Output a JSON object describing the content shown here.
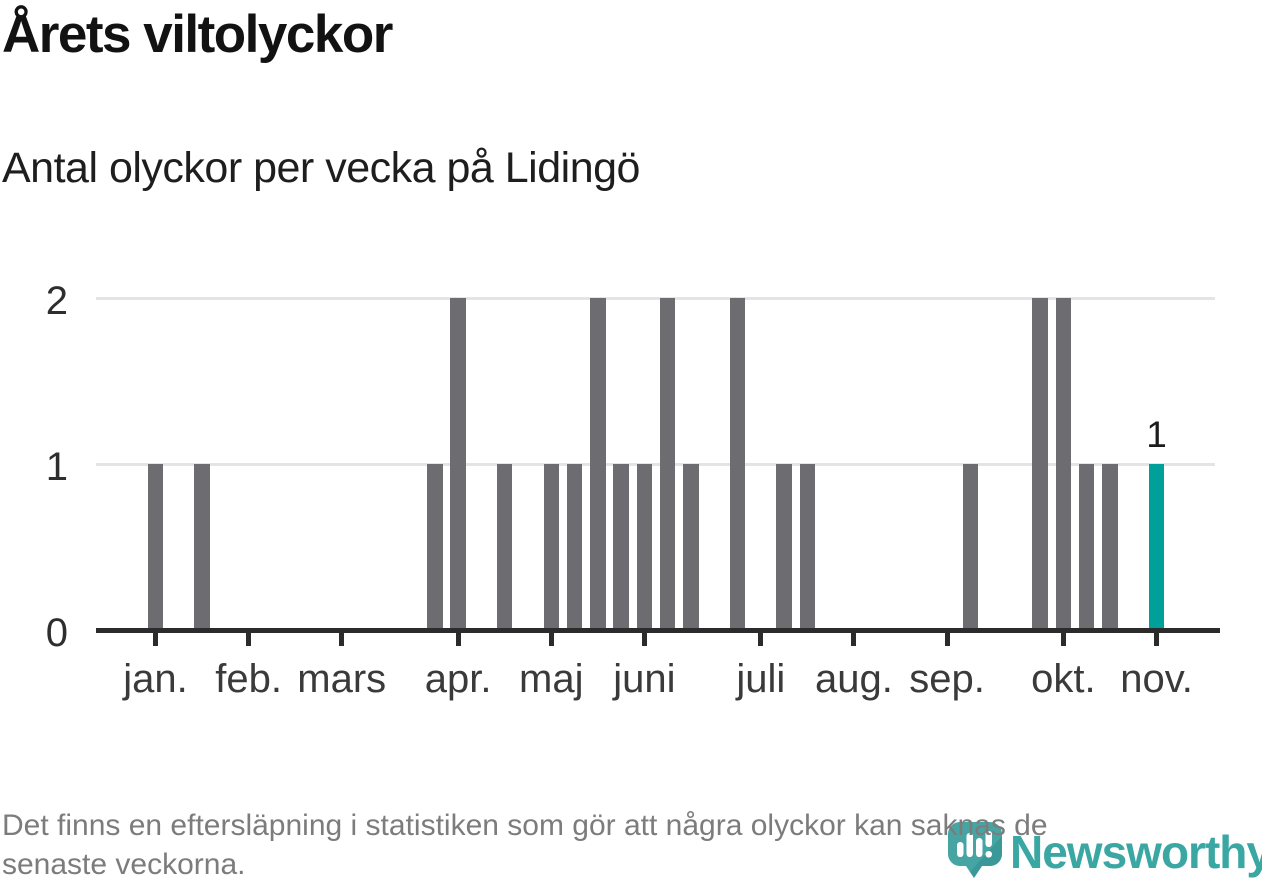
{
  "title": "Årets viltolyckor",
  "subtitle": "Antal olyckor per vecka på Lidingö",
  "footer": {
    "lines": [
      "Det finns en eftersläpning i statistiken som gör att några olyckor kan saknas de",
      "senaste veckorna."
    ]
  },
  "brand": {
    "name": "Newsworthy",
    "icon": "newsworthy-pin-barchart-icon",
    "wordmark_color": "#3aa7a3",
    "pin_color": "#46a5a3"
  },
  "colors": {
    "bar": "#6c6c71",
    "highlight": "#00a09a",
    "axis": "#2b2b2b",
    "grid": "#e4e4e4",
    "annotation_text": "#1c1c1c"
  },
  "chart_data": {
    "type": "bar",
    "title": "Årets viltolyckor",
    "subtitle": "Antal olyckor per vecka på Lidingö",
    "xlabel": "",
    "ylabel": "",
    "x_unit": "week",
    "weeks_shown": 44,
    "ylim": [
      0,
      2
    ],
    "y_ticks": [
      0,
      1,
      2
    ],
    "grid": "horizontal",
    "legend": "none",
    "values": [
      1,
      0,
      1,
      0,
      0,
      0,
      0,
      0,
      0,
      0,
      0,
      0,
      1,
      2,
      0,
      1,
      0,
      1,
      1,
      2,
      1,
      1,
      2,
      1,
      0,
      2,
      0,
      1,
      1,
      0,
      0,
      0,
      0,
      0,
      0,
      1,
      0,
      0,
      2,
      2,
      1,
      1,
      0,
      1
    ],
    "highlight_last": true,
    "annotation": {
      "week_index": 43,
      "text": "1"
    },
    "month_ticks": [
      {
        "label": "jan.",
        "week_index": 0
      },
      {
        "label": "feb.",
        "week_index": 4
      },
      {
        "label": "mars",
        "week_index": 8
      },
      {
        "label": "apr.",
        "week_index": 13
      },
      {
        "label": "maj",
        "week_index": 17
      },
      {
        "label": "juni",
        "week_index": 21
      },
      {
        "label": "juli",
        "week_index": 26
      },
      {
        "label": "aug.",
        "week_index": 30
      },
      {
        "label": "sep.",
        "week_index": 34
      },
      {
        "label": "okt.",
        "week_index": 39
      },
      {
        "label": "nov.",
        "week_index": 43
      }
    ]
  }
}
